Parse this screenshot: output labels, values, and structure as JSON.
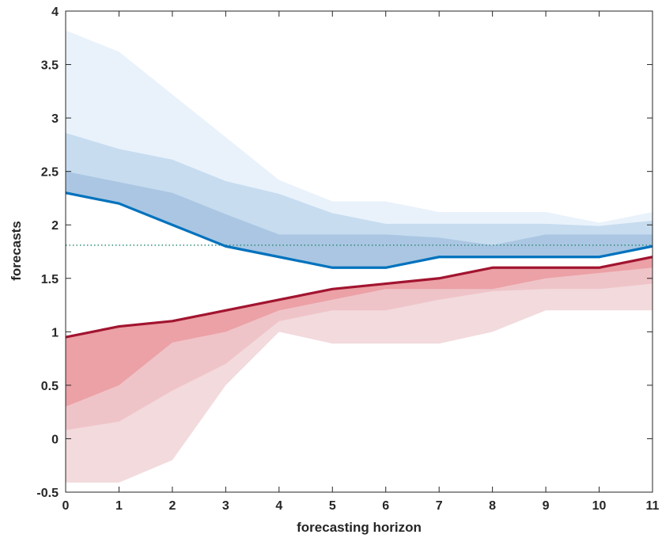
{
  "chart_data": {
    "type": "area",
    "title": "",
    "xlabel": "forecasting horizon",
    "ylabel": "forecasts",
    "xlim": [
      0,
      11
    ],
    "ylim": [
      -0.5,
      4
    ],
    "x": [
      0,
      1,
      2,
      3,
      4,
      5,
      6,
      7,
      8,
      9,
      10,
      11
    ],
    "xticks": [
      "0",
      "1",
      "2",
      "3",
      "4",
      "5",
      "6",
      "7",
      "8",
      "9",
      "10",
      "11"
    ],
    "yticks": [
      "-0.5",
      "0",
      "0.5",
      "1",
      "1.5",
      "2",
      "2.5",
      "3",
      "3.5",
      "4"
    ],
    "reference_line": {
      "y": 1.81,
      "style": "dotted",
      "color": "#2e8b7a"
    },
    "series": [
      {
        "line": [
          2.3,
          2.2,
          2.0,
          1.8,
          1.7,
          1.6,
          1.6,
          1.7,
          1.7,
          1.7,
          1.7,
          1.8
        ],
        "color": "#0072bd",
        "bands": [
          {
            "lower": [
              2.3,
              2.2,
              2.0,
              1.8,
              1.7,
              1.6,
              1.6,
              1.7,
              1.7,
              1.7,
              1.7,
              1.8
            ],
            "upper": [
              3.82,
              3.62,
              3.22,
              2.82,
              2.42,
              2.22,
              2.22,
              2.12,
              2.12,
              2.12,
              2.02,
              2.12
            ],
            "color": "#e9f2fb"
          },
          {
            "lower": [
              2.3,
              2.2,
              2.0,
              1.8,
              1.7,
              1.6,
              1.6,
              1.7,
              1.7,
              1.7,
              1.7,
              1.8
            ],
            "upper": [
              2.86,
              2.71,
              2.61,
              2.41,
              2.29,
              2.11,
              2.01,
              2.01,
              2.01,
              2.01,
              1.99,
              2.04
            ],
            "color": "#c7dcef"
          },
          {
            "lower": [
              2.3,
              2.2,
              2.0,
              1.8,
              1.7,
              1.6,
              1.6,
              1.7,
              1.7,
              1.7,
              1.7,
              1.8
            ],
            "upper": [
              2.5,
              2.4,
              2.3,
              2.1,
              1.91,
              1.91,
              1.91,
              1.88,
              1.81,
              1.91,
              1.91,
              1.91
            ],
            "color": "#aac6e2"
          }
        ]
      },
      {
        "line": [
          0.95,
          1.05,
          1.1,
          1.2,
          1.3,
          1.4,
          1.45,
          1.5,
          1.6,
          1.6,
          1.6,
          1.7
        ],
        "color": "#a2142f",
        "bands": [
          {
            "lower": [
              -0.41,
              -0.41,
              -0.2,
              0.5,
              1.0,
              0.89,
              0.89,
              0.89,
              1.0,
              1.2,
              1.2,
              1.2
            ],
            "upper": [
              0.95,
              1.05,
              1.1,
              1.2,
              1.3,
              1.4,
              1.45,
              1.5,
              1.6,
              1.6,
              1.6,
              1.7
            ],
            "color": "#f2dadd"
          },
          {
            "lower": [
              0.08,
              0.16,
              0.45,
              0.7,
              1.1,
              1.2,
              1.2,
              1.3,
              1.38,
              1.4,
              1.4,
              1.45
            ],
            "upper": [
              0.95,
              1.05,
              1.1,
              1.2,
              1.3,
              1.4,
              1.45,
              1.5,
              1.6,
              1.6,
              1.6,
              1.7
            ],
            "color": "#efc4c8"
          },
          {
            "lower": [
              0.3,
              0.5,
              0.9,
              1.0,
              1.2,
              1.3,
              1.4,
              1.4,
              1.4,
              1.5,
              1.55,
              1.6
            ],
            "upper": [
              0.95,
              1.05,
              1.1,
              1.2,
              1.3,
              1.4,
              1.45,
              1.5,
              1.6,
              1.6,
              1.6,
              1.7
            ],
            "color": "#eba1a6"
          }
        ]
      }
    ]
  }
}
